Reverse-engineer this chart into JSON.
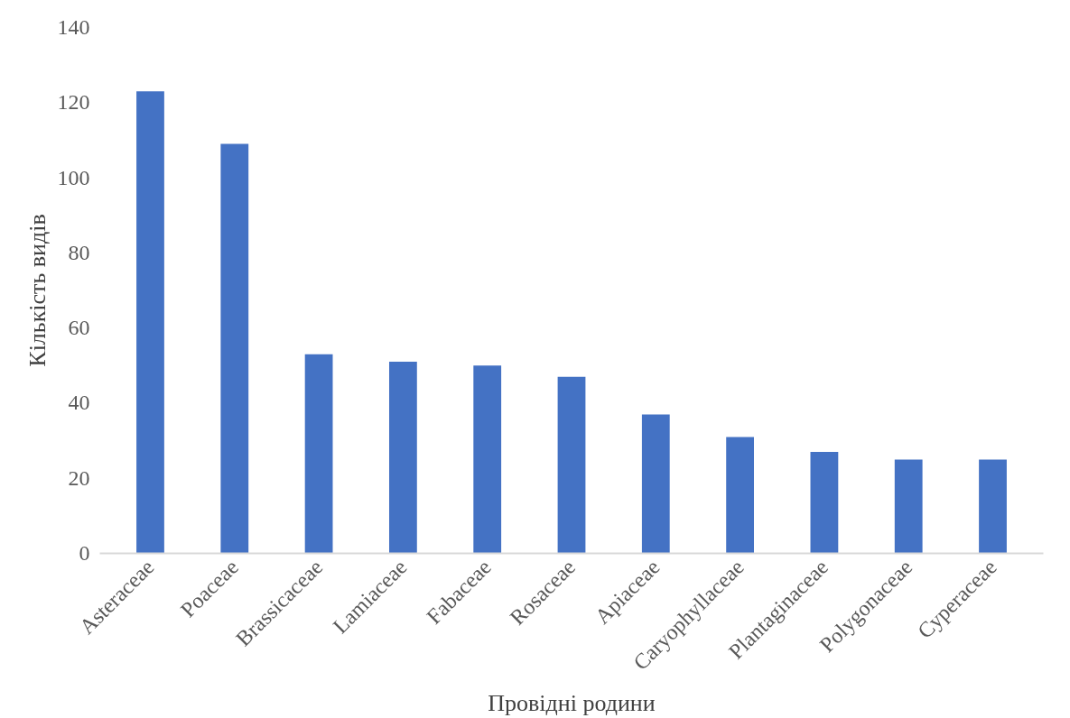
{
  "chart_data": {
    "type": "bar",
    "xlabel": "Провідні родини",
    "ylabel": "Кількість видів",
    "categories": [
      "Asteraceae",
      "Poaceae",
      "Brassicaceae",
      "Lamiaceae",
      "Fabaceae",
      "Rosaceae",
      "Apiaceae",
      "Caryophyllaceae",
      "Plantaginaceae",
      "Polygonaceae",
      "Cyperaceae"
    ],
    "values": [
      123,
      109,
      53,
      51,
      50,
      47,
      37,
      31,
      27,
      25,
      25
    ],
    "color": "#4472c4",
    "ylim": [
      0,
      140
    ],
    "yticks": [
      0,
      20,
      40,
      60,
      80,
      100,
      120,
      140
    ],
    "grid": false
  }
}
